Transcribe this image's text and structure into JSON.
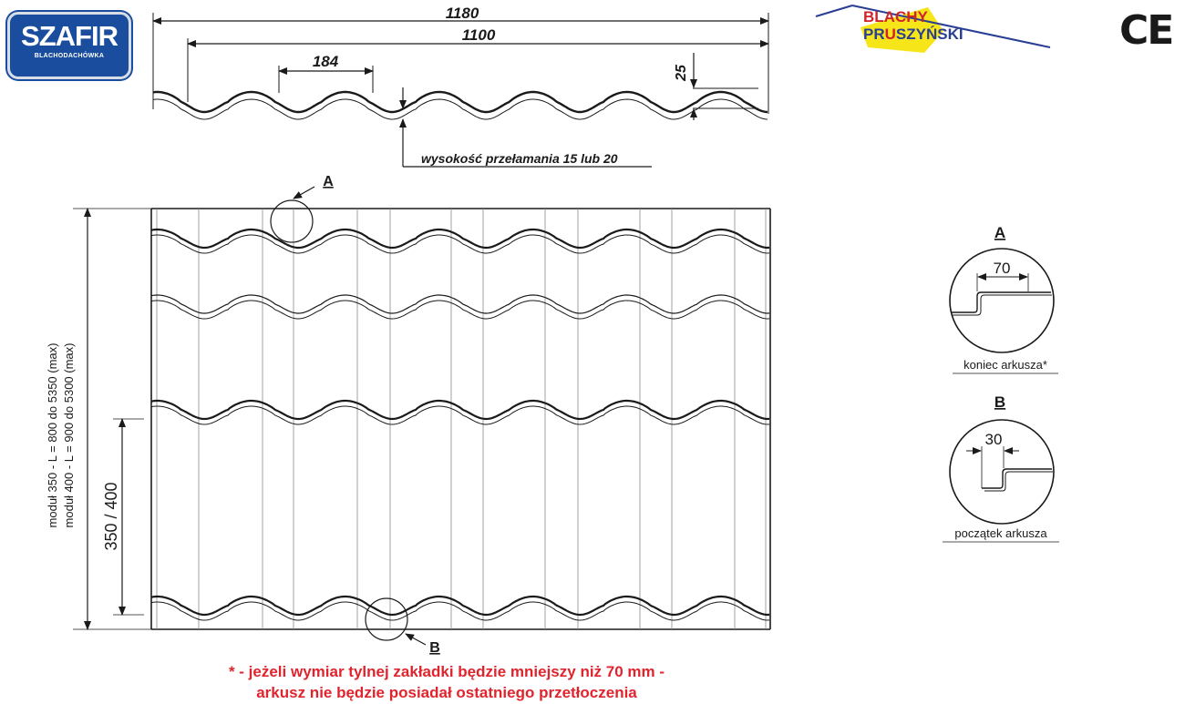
{
  "logos": {
    "szafir_main": "SZAFIR",
    "szafir_sub": "BLACHODACHÓWKA",
    "pruszynski_top": "BLACHY",
    "pruszynski_bottom_pre": "PR",
    "pruszynski_bottom_u": "U",
    "pruszynski_bottom_post": "SZYŃSKI",
    "ce_mark": "CE"
  },
  "profile": {
    "dim_total": "1180",
    "dim_effective": "1100",
    "dim_wave": "184",
    "dim_height": "25",
    "note": "wysokość przełamania 15 lub 20"
  },
  "sheet": {
    "label_a": "A",
    "label_b": "B",
    "length_label_1": "moduł 350 - L = 800 do 5350 (max)",
    "length_label_2": "moduł 400 - L = 900 do 5300 (max)",
    "module_label": "350 / 400"
  },
  "details": {
    "a_title": "A",
    "a_value": "70",
    "a_caption": "koniec arkusza*",
    "b_title": "B",
    "b_value": "30",
    "b_caption": "początek arkusza"
  },
  "footnote": {
    "line1": "* - jeżeli wymiar tylnej zakładki będzie mniejszy niż 70 mm -",
    "line2": "arkusz nie będzie posiadał ostatniego przetłoczenia"
  },
  "colors": {
    "line": "#1a1a1a",
    "footnote": "#e0242e",
    "szafir_blue": "#1a4d9e",
    "pruszynski_red": "#d2232a",
    "pruszynski_yellow": "#f6e619",
    "pruszynski_blue": "#2a3f93"
  }
}
